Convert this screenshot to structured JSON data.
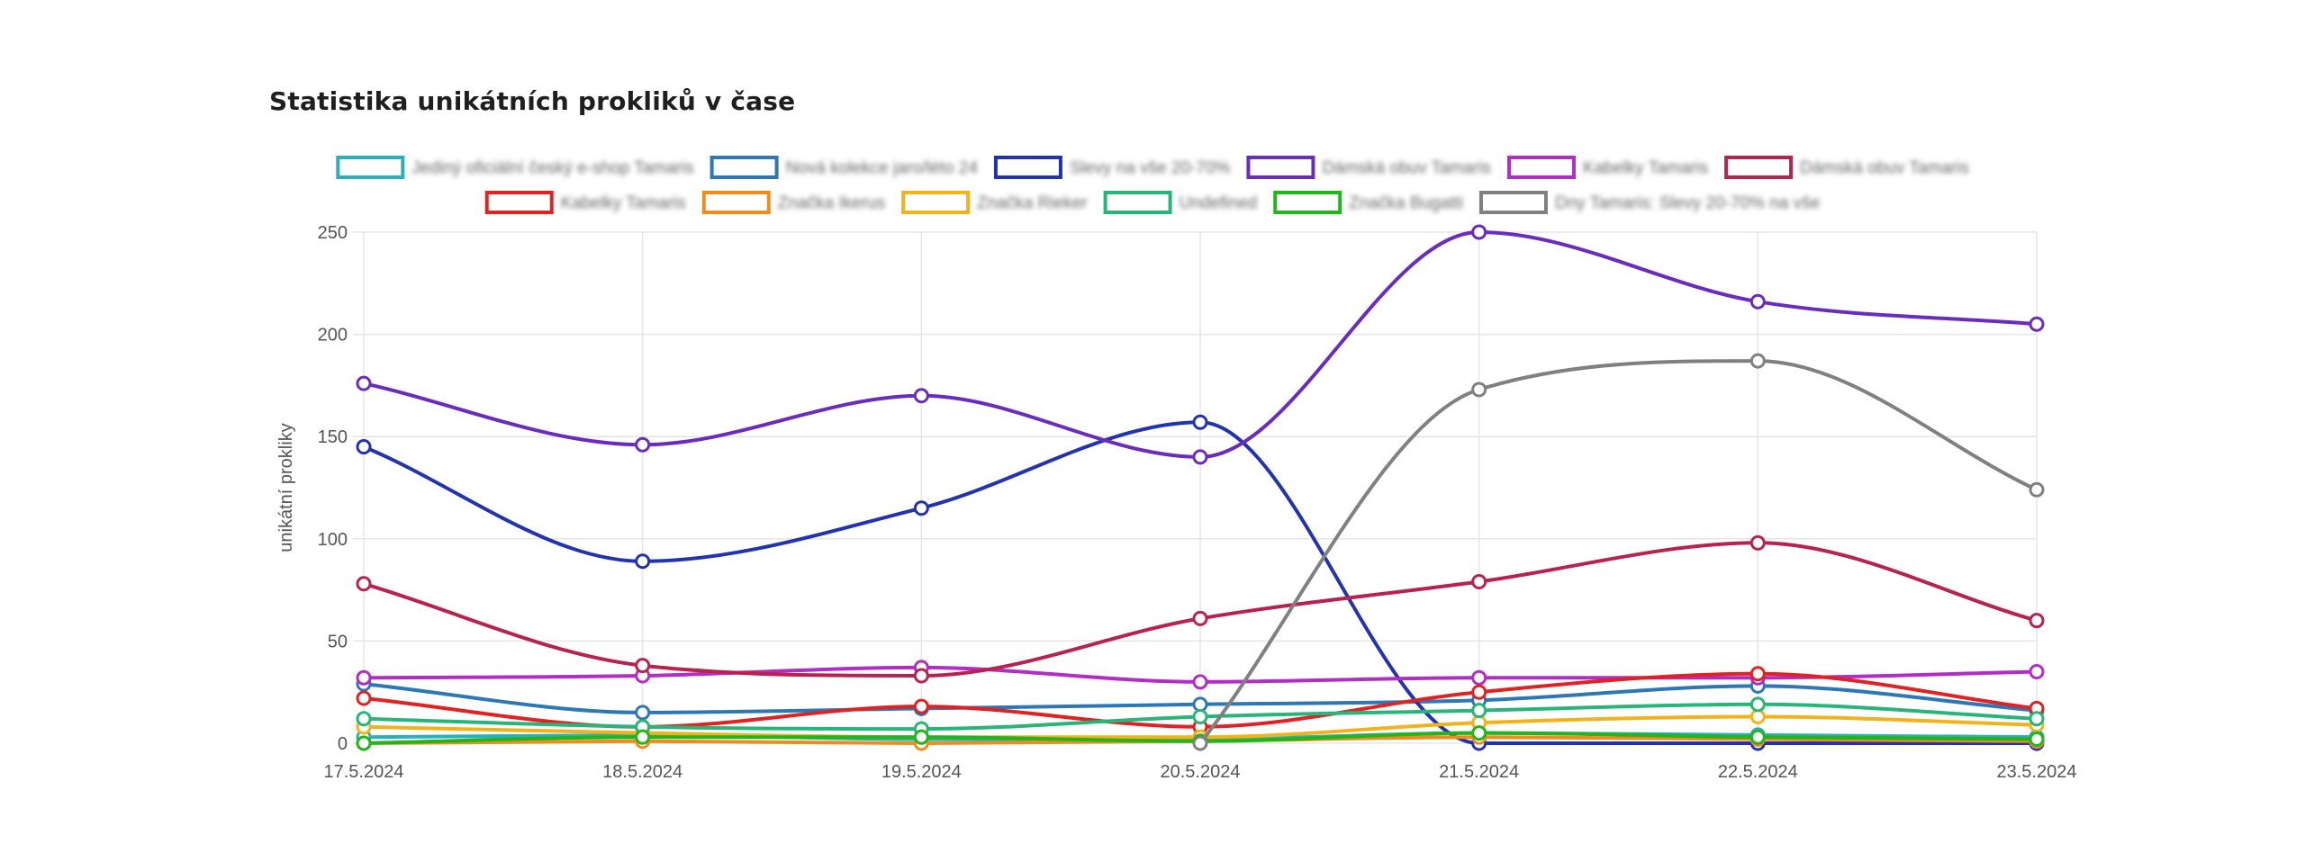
{
  "page": {
    "title": "Statistika unikátních prokliků v čase"
  },
  "chart_data": {
    "type": "line",
    "title": "Statistika unikátních prokliků v čase",
    "xlabel": "",
    "ylabel": "unikátní prokliky",
    "ylim": [
      0,
      250
    ],
    "yticks": [
      "0",
      "50",
      "100",
      "150",
      "200",
      "250"
    ],
    "categories": [
      "17.5.2024",
      "18.5.2024",
      "19.5.2024",
      "20.5.2024",
      "21.5.2024",
      "22.5.2024",
      "23.5.2024"
    ],
    "grid": true,
    "legend_position": "top",
    "series": [
      {
        "name": "Jediný oficiální český e-shop Tamaris",
        "color": "#2ab0bd",
        "values": [
          3,
          4,
          2,
          2,
          5,
          4,
          3
        ]
      },
      {
        "name": "Nová kolekce jaro/léto 24",
        "color": "#2d77b6",
        "values": [
          29,
          15,
          17,
          19,
          21,
          28,
          16
        ]
      },
      {
        "name": "Slevy na vše 20-70%",
        "color": "#2233b0",
        "values": [
          145,
          89,
          115,
          157,
          0,
          0,
          0
        ]
      },
      {
        "name": "Dámská obuv Tamaris",
        "color": "#6a2cbd",
        "values": [
          176,
          146,
          170,
          140,
          250,
          216,
          205
        ]
      },
      {
        "name": "Kabelky Tamaris",
        "color": "#b22cc6",
        "values": [
          32,
          33,
          37,
          30,
          32,
          32,
          35
        ]
      },
      {
        "name": "Dámská obuv Tamaris",
        "color": "#b7234e",
        "values": [
          78,
          38,
          33,
          61,
          79,
          98,
          60
        ]
      },
      {
        "name": "Kabelky Tamaris",
        "color": "#e02222",
        "values": [
          22,
          8,
          18,
          8,
          25,
          34,
          17
        ]
      },
      {
        "name": "Značka Ikerus",
        "color": "#f08c1e",
        "values": [
          0,
          1,
          0,
          1,
          3,
          2,
          1
        ]
      },
      {
        "name": "Značka Rieker",
        "color": "#f2b21a",
        "values": [
          8,
          5,
          3,
          3,
          10,
          13,
          9
        ]
      },
      {
        "name": "Undefined",
        "color": "#29b57a",
        "values": [
          12,
          8,
          7,
          13,
          16,
          19,
          12
        ]
      },
      {
        "name": "Značka Bugatti",
        "color": "#22b51c",
        "values": [
          0,
          3,
          3,
          1,
          5,
          3,
          2
        ]
      },
      {
        "name": "Dny Tamaris: Slevy 20-70% na vše",
        "color": "#808080",
        "values": [
          null,
          null,
          null,
          0,
          173,
          187,
          124
        ]
      }
    ]
  }
}
